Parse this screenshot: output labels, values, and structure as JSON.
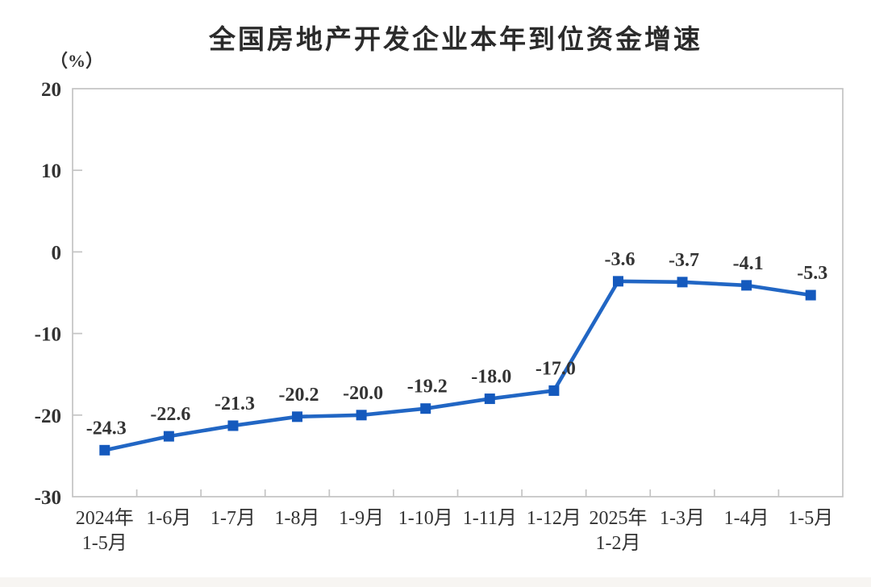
{
  "page": {
    "title": "全国房地产开发企业本年到位资金增速",
    "unit_label": "（%）"
  },
  "colors": {
    "line": "#2166c4",
    "marker": "#1459bd",
    "axis": "#c4c4c4",
    "tick_text": "#333333",
    "label_text": "#333333",
    "title_text": "#2b2b2b"
  },
  "chart_data": {
    "type": "line",
    "title": "全国房地产开发企业本年到位资金增速",
    "ylabel": "（%）",
    "xlabel": "",
    "categories": [
      "2024年\n1-5月",
      "1-6月",
      "1-7月",
      "1-8月",
      "1-9月",
      "1-10月",
      "1-11月",
      "1-12月",
      "2025年\n1-2月",
      "1-3月",
      "1-4月",
      "1-5月"
    ],
    "values": [
      -24.3,
      -22.6,
      -21.3,
      -20.2,
      -20.0,
      -19.2,
      -18.0,
      -17.0,
      -3.6,
      -3.7,
      -4.1,
      -5.3
    ],
    "data_labels": [
      "-24.3",
      "-22.6",
      "-21.3",
      "-20.2",
      "-20.0",
      "-19.2",
      "-18.0",
      "-17.0",
      "-3.6",
      "-3.7",
      "-4.1",
      "-5.3"
    ],
    "y_ticks": [
      20,
      10,
      0,
      -10,
      -20,
      -30
    ],
    "ylim": [
      -30,
      20
    ],
    "grid": false,
    "legend_position": "none",
    "marker_shape": "square"
  }
}
